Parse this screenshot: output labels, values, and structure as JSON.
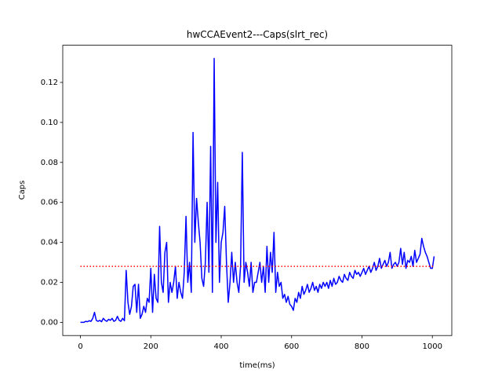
{
  "chart_data": {
    "type": "line",
    "title": "hwCCAEvent2---Caps(slrt_rec)",
    "x_label": "time(ms)",
    "y_label": "Caps",
    "xlim": [
      -50.25,
      1055.25
    ],
    "ylim": [
      -0.0066,
      0.1386
    ],
    "xticks": [
      0,
      200,
      400,
      600,
      800,
      1000
    ],
    "yticks": [
      {
        "value": 0,
        "label": "0.00"
      },
      {
        "value": 0.02,
        "label": "0.02"
      },
      {
        "value": 0.04,
        "label": "0.04"
      },
      {
        "value": 0.06,
        "label": "0.06"
      },
      {
        "value": 0.08,
        "label": "0.08"
      },
      {
        "value": 0.1,
        "label": "0.10"
      },
      {
        "value": 0.12,
        "label": "0.12"
      }
    ],
    "grid": false,
    "series": [
      {
        "color": "#0000ff",
        "style": "solid",
        "x": [
          0,
          5,
          10,
          15,
          20,
          25,
          30,
          35,
          40,
          45,
          50,
          55,
          60,
          65,
          70,
          75,
          80,
          85,
          90,
          95,
          100,
          105,
          110,
          115,
          120,
          125,
          130,
          135,
          140,
          145,
          150,
          155,
          160,
          165,
          170,
          175,
          180,
          185,
          190,
          195,
          200,
          205,
          210,
          215,
          220,
          225,
          230,
          235,
          240,
          245,
          250,
          255,
          260,
          265,
          270,
          275,
          280,
          285,
          290,
          295,
          300,
          305,
          310,
          315,
          320,
          325,
          330,
          335,
          340,
          345,
          350,
          355,
          360,
          365,
          370,
          375,
          380,
          385,
          390,
          395,
          400,
          405,
          410,
          415,
          420,
          425,
          430,
          435,
          440,
          445,
          450,
          455,
          460,
          465,
          470,
          475,
          480,
          485,
          490,
          495,
          500,
          505,
          510,
          515,
          520,
          525,
          530,
          535,
          540,
          545,
          550,
          555,
          560,
          565,
          570,
          575,
          580,
          585,
          590,
          595,
          600,
          605,
          610,
          615,
          620,
          625,
          630,
          635,
          640,
          645,
          650,
          655,
          660,
          665,
          670,
          675,
          680,
          685,
          690,
          695,
          700,
          705,
          710,
          715,
          720,
          725,
          730,
          735,
          740,
          745,
          750,
          755,
          760,
          765,
          770,
          775,
          780,
          785,
          790,
          795,
          800,
          805,
          810,
          815,
          820,
          825,
          830,
          835,
          840,
          845,
          850,
          855,
          860,
          865,
          870,
          875,
          880,
          885,
          890,
          895,
          900,
          905,
          910,
          915,
          920,
          925,
          930,
          935,
          940,
          945,
          950,
          955,
          960,
          965,
          970,
          975,
          980,
          985,
          990,
          995,
          1000,
          1005
        ],
        "values": [
          0,
          0,
          0,
          0.0005,
          0.0003,
          0.0008,
          0.0005,
          0.002,
          0.005,
          0.001,
          0.0005,
          0.001,
          0.0003,
          0.002,
          0.001,
          0.0005,
          0.0015,
          0.001,
          0.002,
          0.0005,
          0.001,
          0.003,
          0.001,
          0.0005,
          0.002,
          0.0008,
          0.026,
          0.01,
          0.004,
          0.008,
          0.018,
          0.019,
          0.005,
          0.019,
          0.002,
          0.004,
          0.008,
          0.005,
          0.012,
          0.01,
          0.027,
          0.005,
          0.024,
          0.012,
          0.01,
          0.048,
          0.02,
          0.015,
          0.035,
          0.04,
          0.01,
          0.02,
          0.015,
          0.02,
          0.028,
          0.012,
          0.02,
          0.015,
          0.012,
          0.025,
          0.053,
          0.02,
          0.03,
          0.015,
          0.095,
          0.04,
          0.062,
          0.05,
          0.04,
          0.022,
          0.018,
          0.03,
          0.06,
          0.025,
          0.088,
          0.015,
          0.132,
          0.04,
          0.07,
          0.02,
          0.04,
          0.045,
          0.058,
          0.03,
          0.01,
          0.02,
          0.035,
          0.02,
          0.03,
          0.02,
          0.015,
          0.028,
          0.085,
          0.02,
          0.03,
          0.025,
          0.018,
          0.03,
          0.015,
          0.02,
          0.02,
          0.025,
          0.03,
          0.02,
          0.028,
          0.015,
          0.038,
          0.02,
          0.035,
          0.025,
          0.045,
          0.015,
          0.025,
          0.018,
          0.02,
          0.012,
          0.014,
          0.01,
          0.013,
          0.009,
          0.008,
          0.006,
          0.012,
          0.01,
          0.015,
          0.012,
          0.018,
          0.014,
          0.016,
          0.019,
          0.015,
          0.017,
          0.02,
          0.016,
          0.018,
          0.015,
          0.019,
          0.017,
          0.02,
          0.018,
          0.02,
          0.017,
          0.021,
          0.018,
          0.022,
          0.019,
          0.02,
          0.023,
          0.021,
          0.02,
          0.024,
          0.022,
          0.021,
          0.025,
          0.023,
          0.022,
          0.026,
          0.024,
          0.025,
          0.023,
          0.025,
          0.027,
          0.024,
          0.026,
          0.028,
          0.025,
          0.027,
          0.03,
          0.026,
          0.028,
          0.032,
          0.027,
          0.029,
          0.031,
          0.028,
          0.03,
          0.035,
          0.027,
          0.029,
          0.03,
          0.028,
          0.03,
          0.037,
          0.029,
          0.035,
          0.027,
          0.031,
          0.03,
          0.033,
          0.028,
          0.036,
          0.03,
          0.032,
          0.034,
          0.042,
          0.038,
          0.035,
          0.033,
          0.03,
          0.027,
          0.027,
          0.033
        ]
      },
      {
        "color": "#ff0000",
        "style": "dotted",
        "x": [
          0,
          1005
        ],
        "values": [
          0.028,
          0.028
        ]
      }
    ]
  }
}
